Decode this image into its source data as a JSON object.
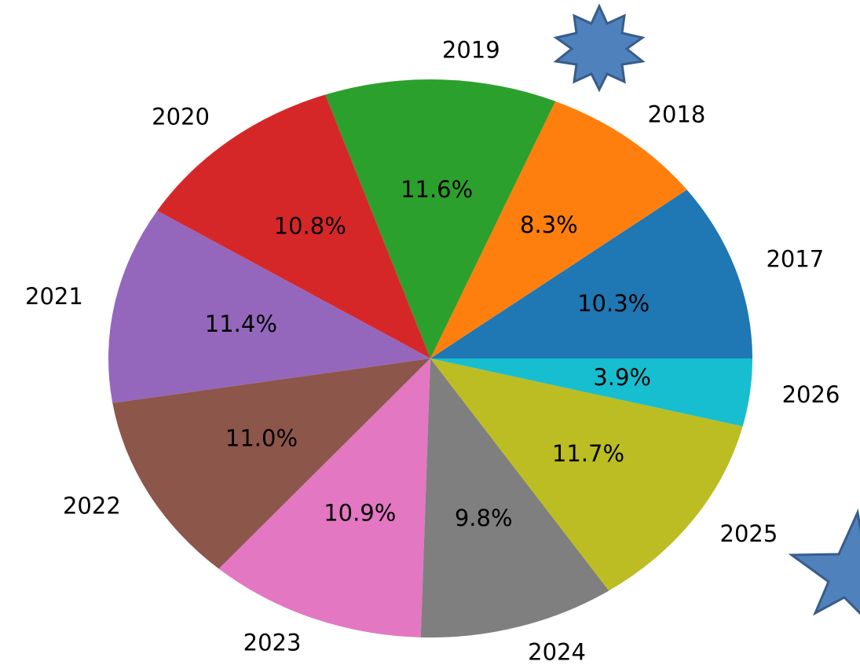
{
  "chart_data": {
    "type": "pie",
    "categories": [
      "2017",
      "2018",
      "2019",
      "2020",
      "2021",
      "2022",
      "2023",
      "2024",
      "2025",
      "2026"
    ],
    "values": [
      10.3,
      8.3,
      11.6,
      10.8,
      11.4,
      11.0,
      10.9,
      9.8,
      11.7,
      3.9
    ],
    "value_labels": [
      "10.3%",
      "8.3%",
      "11.6%",
      "10.8%",
      "11.4%",
      "11.0%",
      "10.9%",
      "9.8%",
      "11.7%",
      "3.9%"
    ],
    "colors": [
      "#1f77b4",
      "#ff7f0e",
      "#2ca02c",
      "#d62728",
      "#9467bd",
      "#8c564b",
      "#e377c2",
      "#7f7f7f",
      "#bcbd22",
      "#17becf"
    ]
  }
}
